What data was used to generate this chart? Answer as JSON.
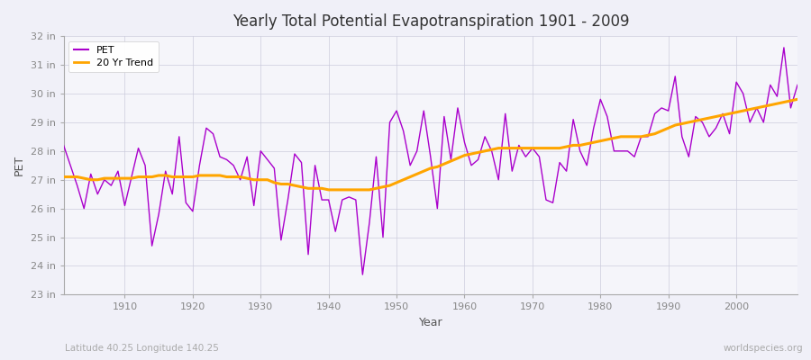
{
  "title": "Yearly Total Potential Evapotranspiration 1901 - 2009",
  "xlabel": "Year",
  "ylabel": "PET",
  "bottom_left_label": "Latitude 40.25 Longitude 140.25",
  "bottom_right_label": "worldspecies.org",
  "ylim": [
    23,
    32
  ],
  "yticks": [
    23,
    24,
    25,
    26,
    27,
    28,
    29,
    30,
    31,
    32
  ],
  "ytick_labels": [
    "23 in",
    "24 in",
    "25 in",
    "26 in",
    "27 in",
    "28 in",
    "29 in",
    "30 in",
    "31 in",
    "32 in"
  ],
  "pet_color": "#AA00CC",
  "trend_color": "#FFA500",
  "fig_bg_color": "#F0F0F8",
  "plot_bg_color": "#F5F5FA",
  "grid_color": "#CCCCDD",
  "xlim": [
    1901,
    2009
  ],
  "xticks": [
    1910,
    1920,
    1930,
    1940,
    1950,
    1960,
    1970,
    1980,
    1990,
    2000
  ],
  "years": [
    1901,
    1902,
    1903,
    1904,
    1905,
    1906,
    1907,
    1908,
    1909,
    1910,
    1911,
    1912,
    1913,
    1914,
    1915,
    1916,
    1917,
    1918,
    1919,
    1920,
    1921,
    1922,
    1923,
    1924,
    1925,
    1926,
    1927,
    1928,
    1929,
    1930,
    1931,
    1932,
    1933,
    1934,
    1935,
    1936,
    1937,
    1938,
    1939,
    1940,
    1941,
    1942,
    1943,
    1944,
    1945,
    1946,
    1947,
    1948,
    1949,
    1950,
    1951,
    1952,
    1953,
    1954,
    1955,
    1956,
    1957,
    1958,
    1959,
    1960,
    1961,
    1962,
    1963,
    1964,
    1965,
    1966,
    1967,
    1968,
    1969,
    1970,
    1971,
    1972,
    1973,
    1974,
    1975,
    1976,
    1977,
    1978,
    1979,
    1980,
    1981,
    1982,
    1983,
    1984,
    1985,
    1986,
    1987,
    1988,
    1989,
    1990,
    1991,
    1992,
    1993,
    1994,
    1995,
    1996,
    1997,
    1998,
    1999,
    2000,
    2001,
    2002,
    2003,
    2004,
    2005,
    2006,
    2007,
    2008,
    2009
  ],
  "pet_values": [
    28.2,
    27.5,
    26.8,
    26.0,
    27.2,
    26.5,
    27.0,
    26.8,
    27.3,
    26.1,
    27.1,
    28.1,
    27.5,
    24.7,
    25.8,
    27.3,
    26.5,
    28.5,
    26.2,
    25.9,
    27.5,
    28.8,
    28.6,
    27.8,
    27.7,
    27.5,
    27.0,
    27.8,
    26.1,
    28.0,
    27.7,
    27.4,
    24.9,
    26.3,
    27.9,
    27.6,
    24.4,
    27.5,
    26.3,
    26.3,
    25.2,
    26.3,
    26.4,
    26.3,
    23.7,
    25.5,
    27.8,
    25.0,
    29.0,
    29.4,
    28.7,
    27.5,
    28.0,
    29.4,
    27.8,
    26.0,
    29.2,
    27.7,
    29.5,
    28.3,
    27.5,
    27.7,
    28.5,
    28.0,
    27.0,
    29.3,
    27.3,
    28.2,
    27.8,
    28.1,
    27.8,
    26.3,
    26.2,
    27.6,
    27.3,
    29.1,
    28.0,
    27.5,
    28.8,
    29.8,
    29.2,
    28.0,
    28.0,
    28.0,
    27.8,
    28.5,
    28.5,
    29.3,
    29.5,
    29.4,
    30.6,
    28.5,
    27.8,
    29.2,
    29.0,
    28.5,
    28.8,
    29.3,
    28.6,
    30.4,
    30.0,
    29.0,
    29.5,
    29.0,
    30.3,
    29.9,
    31.6,
    29.5,
    30.3
  ],
  "trend_values": [
    27.1,
    27.1,
    27.1,
    27.05,
    27.0,
    27.0,
    27.05,
    27.05,
    27.05,
    27.05,
    27.05,
    27.1,
    27.1,
    27.1,
    27.15,
    27.15,
    27.1,
    27.1,
    27.1,
    27.1,
    27.15,
    27.15,
    27.15,
    27.15,
    27.1,
    27.1,
    27.1,
    27.05,
    27.0,
    27.0,
    27.0,
    26.9,
    26.85,
    26.85,
    26.8,
    26.75,
    26.7,
    26.7,
    26.7,
    26.65,
    26.65,
    26.65,
    26.65,
    26.65,
    26.65,
    26.65,
    26.7,
    26.75,
    26.8,
    26.9,
    27.0,
    27.1,
    27.2,
    27.3,
    27.4,
    27.45,
    27.55,
    27.65,
    27.75,
    27.85,
    27.9,
    27.95,
    28.0,
    28.05,
    28.1,
    28.1,
    28.1,
    28.1,
    28.1,
    28.1,
    28.1,
    28.1,
    28.1,
    28.1,
    28.15,
    28.2,
    28.2,
    28.25,
    28.3,
    28.35,
    28.4,
    28.45,
    28.5,
    28.5,
    28.5,
    28.5,
    28.55,
    28.6,
    28.7,
    28.8,
    28.9,
    28.95,
    29.0,
    29.05,
    29.1,
    29.15,
    29.2,
    29.25,
    29.3,
    29.35,
    29.4,
    29.45,
    29.5,
    29.55,
    29.6,
    29.65,
    29.7,
    29.75,
    29.8
  ]
}
